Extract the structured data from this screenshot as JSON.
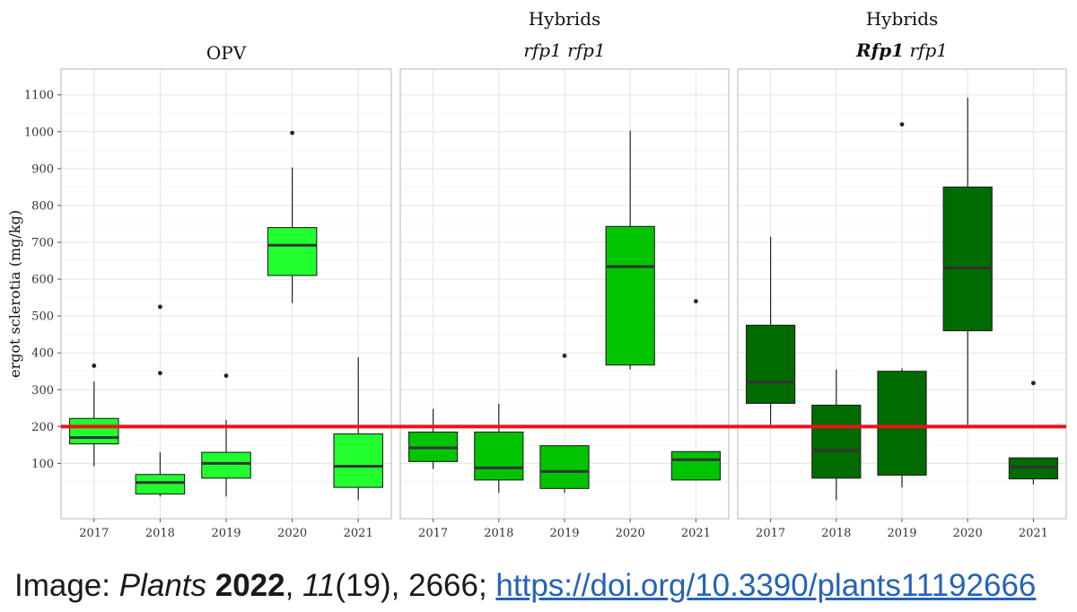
{
  "chart_data": {
    "type": "box",
    "ylabel": "ergot sclerotia (mg/kg)",
    "y_ticks": [
      100,
      200,
      300,
      400,
      500,
      600,
      700,
      800,
      900,
      1000,
      1100
    ],
    "ylim": [
      -50,
      1170
    ],
    "categories": [
      "2017",
      "2018",
      "2019",
      "2020",
      "2021"
    ],
    "reference_line": {
      "y": 200,
      "color": "#e8141b"
    },
    "grid": true,
    "panels": [
      {
        "title_line1": "OPV",
        "title_line2_parts": [],
        "fill": "#22ff2e",
        "boxes": [
          {
            "year": "2017",
            "low": 92,
            "q1": 153,
            "median": 170,
            "q3": 222,
            "high": 322,
            "outliers": [
              365
            ]
          },
          {
            "year": "2018",
            "low": 10,
            "q1": 17,
            "median": 48,
            "q3": 70,
            "high": 130,
            "outliers": [
              345,
              525
            ]
          },
          {
            "year": "2019",
            "low": 10,
            "q1": 60,
            "median": 100,
            "q3": 130,
            "high": 218,
            "outliers": [
              338
            ]
          },
          {
            "year": "2020",
            "low": 535,
            "q1": 610,
            "median": 692,
            "q3": 740,
            "high": 903,
            "outliers": [
              997
            ]
          },
          {
            "year": "2021",
            "low": 0,
            "q1": 35,
            "median": 92,
            "q3": 180,
            "high": 388,
            "outliers": []
          }
        ]
      },
      {
        "title_line1": "Hybrids",
        "title_line2_parts": [
          {
            "text": "rfp1 rfp1",
            "bold": false
          }
        ],
        "fill": "#00c400",
        "boxes": [
          {
            "year": "2017",
            "low": 85,
            "q1": 105,
            "median": 142,
            "q3": 185,
            "high": 248,
            "outliers": []
          },
          {
            "year": "2018",
            "low": 20,
            "q1": 55,
            "median": 88,
            "q3": 185,
            "high": 262,
            "outliers": []
          },
          {
            "year": "2019",
            "low": 20,
            "q1": 32,
            "median": 78,
            "q3": 148,
            "high": 148,
            "outliers": [
              392
            ]
          },
          {
            "year": "2020",
            "low": 355,
            "q1": 367,
            "median": 634,
            "q3": 743,
            "high": 1003,
            "outliers": []
          },
          {
            "year": "2021",
            "low": 55,
            "q1": 55,
            "median": 110,
            "q3": 132,
            "high": 132,
            "outliers": [
              540
            ]
          }
        ]
      },
      {
        "title_line1": "Hybrids",
        "title_line2_parts": [
          {
            "text": "Rfp1",
            "bold": true
          },
          {
            "text": " rfp1",
            "bold": false
          }
        ],
        "fill": "#006b00",
        "boxes": [
          {
            "year": "2017",
            "low": 205,
            "q1": 263,
            "median": 320,
            "q3": 475,
            "high": 715,
            "outliers": []
          },
          {
            "year": "2018",
            "low": 0,
            "q1": 60,
            "median": 135,
            "q3": 258,
            "high": 355,
            "outliers": []
          },
          {
            "year": "2019",
            "low": 35,
            "q1": 68,
            "median": 200,
            "q3": 350,
            "high": 358,
            "outliers": [
              1020
            ]
          },
          {
            "year": "2020",
            "low": 205,
            "q1": 460,
            "median": 630,
            "q3": 850,
            "high": 1093,
            "outliers": []
          },
          {
            "year": "2021",
            "low": 43,
            "q1": 58,
            "median": 90,
            "q3": 115,
            "high": 115,
            "outliers": [
              318
            ]
          }
        ]
      }
    ]
  },
  "caption": {
    "prefix": "Image: ",
    "journal": "Plants",
    "year": "2022",
    "sep1": ", ",
    "volume": "11",
    "issue_pages": "(19), 2666; ",
    "link": "https://doi.org/10.3390/plants11192666"
  }
}
